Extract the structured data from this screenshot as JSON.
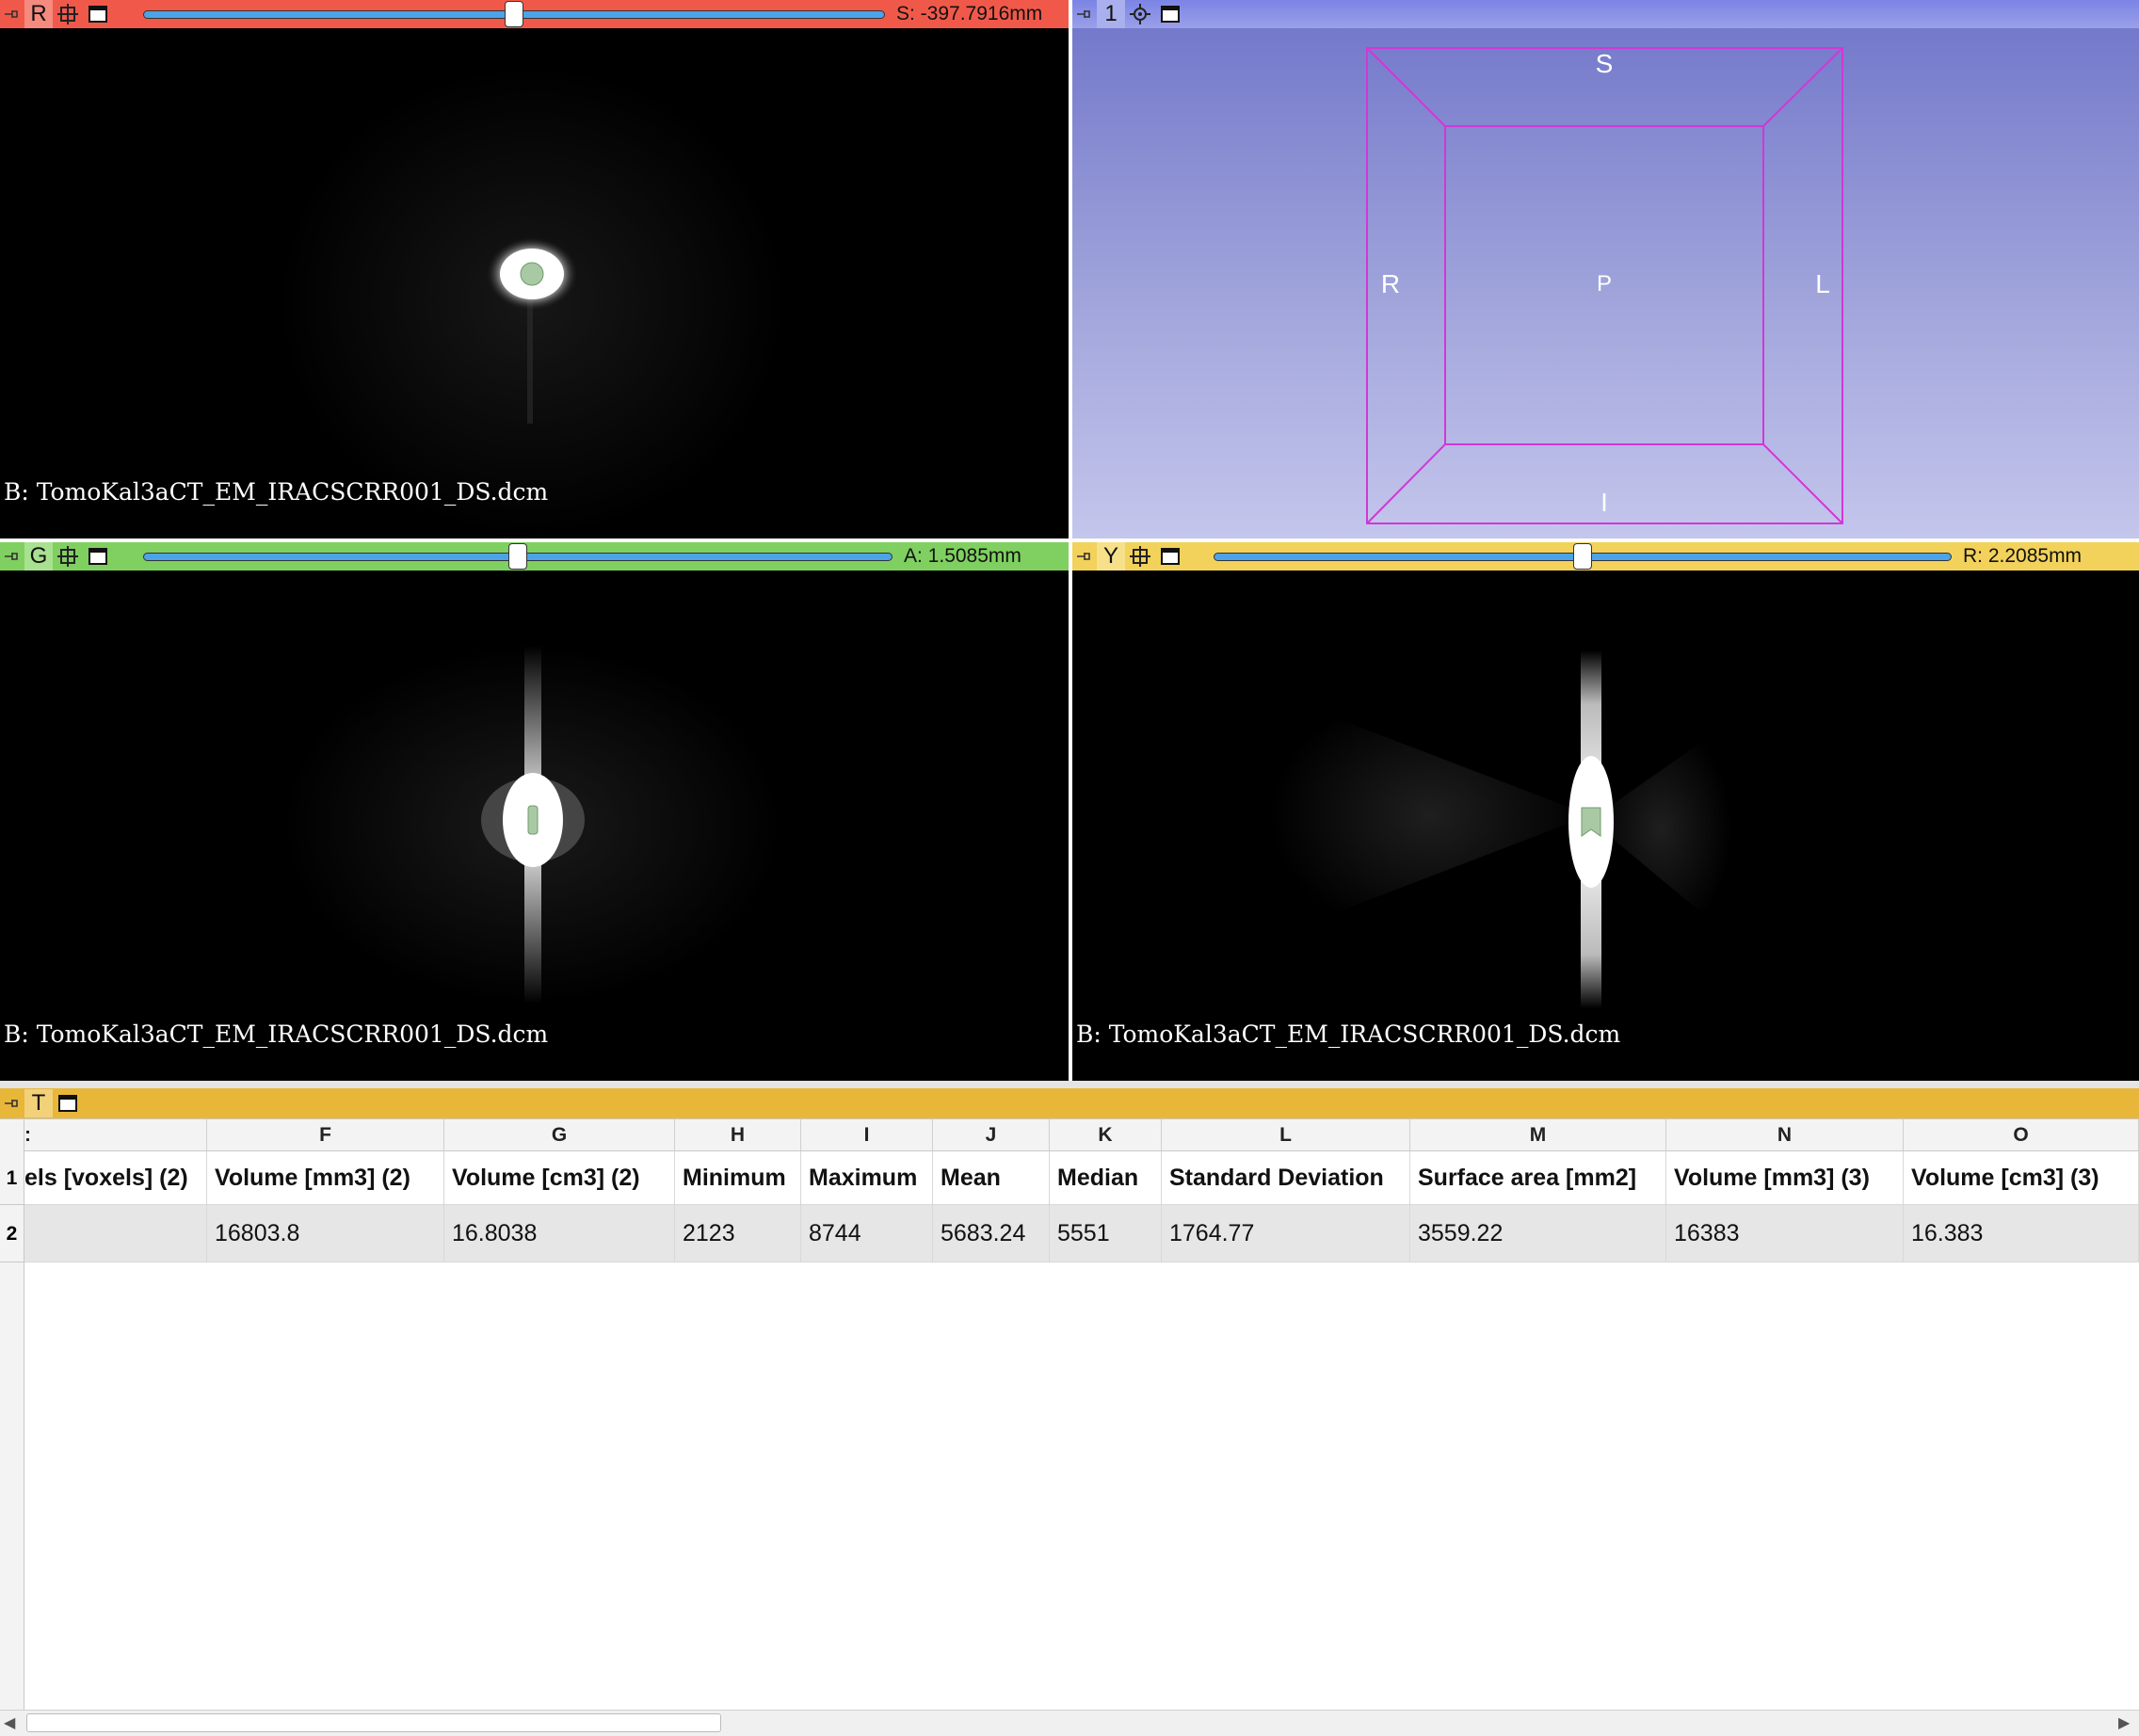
{
  "red_view": {
    "label": "R",
    "offset": "S: -397.7916mm",
    "slider_fraction": 0.5,
    "volume_label": "B: TomoKal3aCT_EM_IRACSCRR001_DS.dcm",
    "bar_color": "#f0594a"
  },
  "threed_view": {
    "label": "1",
    "orientation": {
      "top": "S",
      "left": "R",
      "center": "P",
      "right": "L",
      "bottom": "I"
    },
    "bar_color": "#8890e0"
  },
  "green_view": {
    "label": "G",
    "offset": "A: 1.5085mm",
    "slider_fraction": 0.5,
    "volume_label": "B: TomoKal3aCT_EM_IRACSCRR001_DS.dcm",
    "bar_color": "#7fd060"
  },
  "yellow_view": {
    "label": "Y",
    "offset": "R: 2.2085mm",
    "slider_fraction": 0.5,
    "volume_label": "B: TomoKal3aCT_EM_IRACSCRR001_DS.dcm",
    "bar_color": "#f2d25a"
  },
  "table_view": {
    "label": "T",
    "bar_color": "#e8b73a",
    "column_letters": [
      ":",
      "F",
      "G",
      "H",
      "I",
      "J",
      "K",
      "L",
      "M",
      "N",
      "O"
    ],
    "row_numbers": [
      "1",
      "2"
    ],
    "header_row": [
      "els [voxels] (2)",
      "Volume [mm3] (2)",
      "Volume [cm3] (2)",
      "Minimum",
      "Maximum",
      "Mean",
      "Median",
      "Standard Deviation",
      "Surface area [mm2]",
      "Volume [mm3] (3)",
      "Volume [cm3] (3)"
    ],
    "data_row": [
      "",
      "16803.8",
      "16.8038",
      "2123",
      "8744",
      "5683.24",
      "5551",
      "1764.77",
      "3559.22",
      "16383",
      "16.383"
    ],
    "scroll_left_glyph": "◀",
    "scroll_right_glyph": "▶"
  },
  "icons": {
    "pin": "pin-icon",
    "link": "link-icon",
    "maximize": "maximize-view-icon",
    "gear": "gear-icon"
  }
}
